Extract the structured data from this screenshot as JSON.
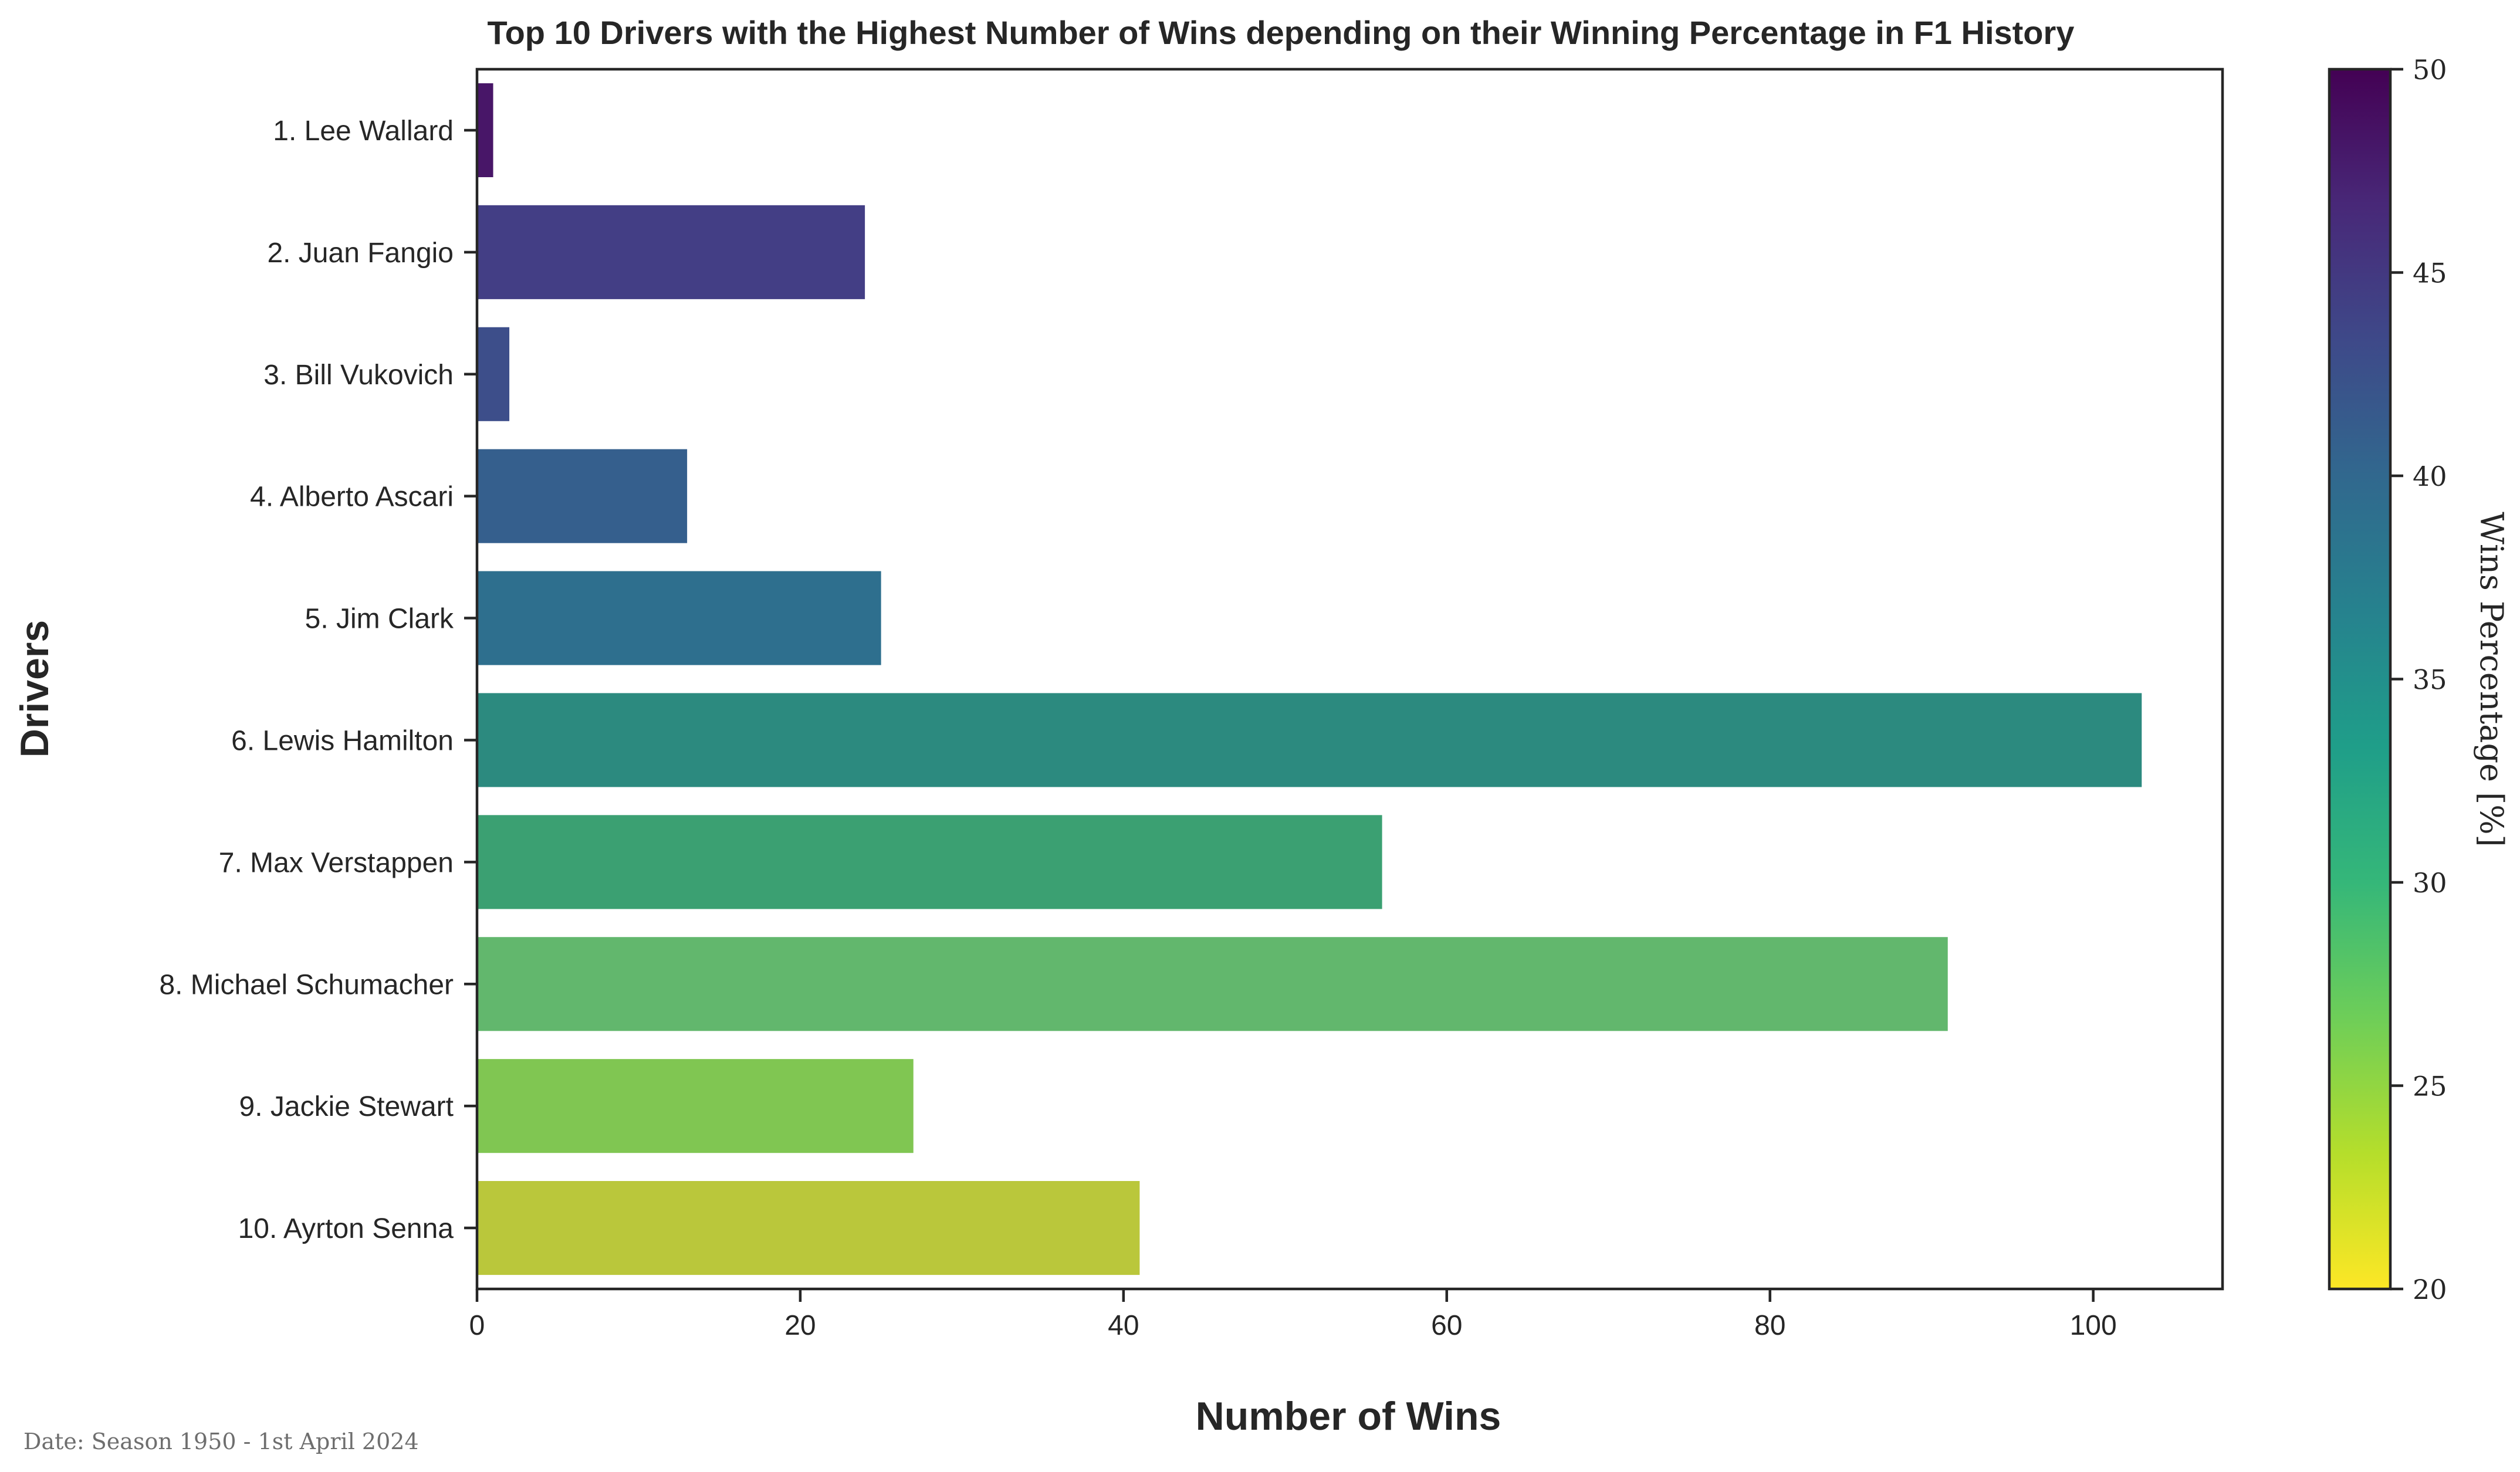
{
  "chart_data": {
    "type": "bar",
    "orientation": "horizontal",
    "title": "Top 10 Drivers with the Highest Number of Wins depending on their Winning Percentage in F1 History",
    "xlabel": "Number of Wins",
    "ylabel": "Drivers",
    "xlim": [
      0,
      108
    ],
    "xticks": [
      0,
      20,
      40,
      60,
      80,
      100
    ],
    "categories": [
      "1. Lee Wallard",
      "2. Juan Fangio",
      "3. Bill Vukovich",
      "4. Alberto Ascari",
      "5. Jim Clark",
      "6. Lewis Hamilton",
      "7. Max Verstappen",
      "8. Michael Schumacher",
      "9. Jackie Stewart",
      "10. Ayrton Senna"
    ],
    "values": [
      1,
      24,
      2,
      13,
      25,
      103,
      56,
      91,
      27,
      41
    ],
    "bar_colors": [
      "#481668",
      "#433e85",
      "#3d4e8a",
      "#355f8d",
      "#2e6f8e",
      "#2c8a7f",
      "#3ba072",
      "#62b76d",
      "#80c652",
      "#bac73b"
    ],
    "colorbar": {
      "label": "Wins Percentage [%]",
      "range": [
        20,
        50
      ],
      "ticks": [
        20,
        25,
        30,
        35,
        40,
        45,
        50
      ],
      "colormap": "viridis_r",
      "stops": [
        "#fde725",
        "#b5de2b",
        "#6ece58",
        "#35b779",
        "#1f9e89",
        "#26828e",
        "#31688e",
        "#3e4989",
        "#482878",
        "#440154"
      ]
    },
    "grid": false,
    "legend": "none"
  },
  "footnote": "Date: Season 1950 - 1st April 2024"
}
